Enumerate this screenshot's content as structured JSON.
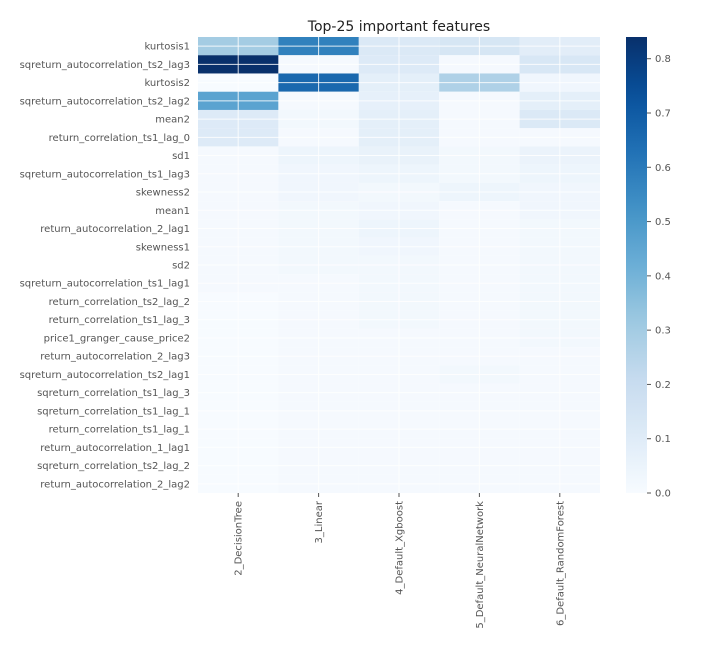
{
  "chart_data": {
    "type": "heatmap",
    "title": "Top-25 important features",
    "x_categories": [
      "2_DecisionTree",
      "3_Linear",
      "4_Default_Xgboost",
      "5_Default_NeuralNetwork",
      "6_Default_RandomForest"
    ],
    "y_categories": [
      "kurtosis1",
      "sqreturn_autocorrelation_ts2_lag3",
      "kurtosis2",
      "sqreturn_autocorrelation_ts2_lag2",
      "mean2",
      "return_correlation_ts1_lag_0",
      "sd1",
      "sqreturn_autocorrelation_ts1_lag3",
      "skewness2",
      "mean1",
      "return_autocorrelation_2_lag1",
      "skewness1",
      "sd2",
      "sqreturn_autocorrelation_ts1_lag1",
      "return_correlation_ts2_lag_2",
      "return_correlation_ts1_lag_3",
      "price1_granger_cause_price2",
      "return_autocorrelation_2_lag3",
      "sqreturn_autocorrelation_ts2_lag1",
      "sqreturn_correlation_ts1_lag_3",
      "sqreturn_correlation_ts1_lag_1",
      "return_correlation_ts1_lag_1",
      "return_autocorrelation_1_lag1",
      "sqreturn_correlation_ts2_lag_2",
      "return_autocorrelation_2_lag2"
    ],
    "values": [
      [
        0.3,
        0.58,
        0.12,
        0.14,
        0.09
      ],
      [
        0.85,
        0.01,
        0.11,
        0.01,
        0.13
      ],
      [
        0.0,
        0.66,
        0.08,
        0.27,
        0.03
      ],
      [
        0.46,
        0.01,
        0.07,
        0.01,
        0.08
      ],
      [
        0.11,
        0.02,
        0.08,
        0.01,
        0.12
      ],
      [
        0.11,
        0.01,
        0.08,
        0.01,
        0.01
      ],
      [
        0.01,
        0.04,
        0.06,
        0.02,
        0.05
      ],
      [
        0.01,
        0.03,
        0.04,
        0.02,
        0.04
      ],
      [
        0.01,
        0.03,
        0.02,
        0.04,
        0.03
      ],
      [
        0.01,
        0.02,
        0.03,
        0.01,
        0.03
      ],
      [
        0.01,
        0.02,
        0.04,
        0.01,
        0.02
      ],
      [
        0.01,
        0.02,
        0.03,
        0.01,
        0.02
      ],
      [
        0.01,
        0.02,
        0.02,
        0.01,
        0.02
      ],
      [
        0.01,
        0.01,
        0.02,
        0.01,
        0.02
      ],
      [
        0.0,
        0.01,
        0.02,
        0.01,
        0.02
      ],
      [
        0.0,
        0.01,
        0.02,
        0.01,
        0.02
      ],
      [
        0.0,
        0.01,
        0.01,
        0.01,
        0.02
      ],
      [
        0.0,
        0.01,
        0.01,
        0.01,
        0.01
      ],
      [
        0.0,
        0.01,
        0.01,
        0.02,
        0.01
      ],
      [
        0.0,
        0.01,
        0.01,
        0.01,
        0.01
      ],
      [
        0.0,
        0.01,
        0.01,
        0.01,
        0.01
      ],
      [
        0.0,
        0.01,
        0.01,
        0.01,
        0.01
      ],
      [
        0.0,
        0.01,
        0.01,
        0.01,
        0.01
      ],
      [
        0.0,
        0.01,
        0.01,
        0.01,
        0.01
      ],
      [
        0.0,
        0.01,
        0.01,
        0.01,
        0.01
      ]
    ],
    "zlim": [
      0.0,
      0.84
    ],
    "colorscale": "Blues",
    "colorbar_ticks": [
      "0.0",
      "0.1",
      "0.2",
      "0.3",
      "0.4",
      "0.5",
      "0.6",
      "0.7",
      "0.8"
    ],
    "colorbar_tick_values": [
      0.0,
      0.1,
      0.2,
      0.3,
      0.4,
      0.5,
      0.6,
      0.7,
      0.8
    ],
    "grid": true,
    "colors": {
      "low": "#f7fbff",
      "high": "#08306b",
      "grid": "#ffffff",
      "text": "#555555",
      "title": "#222222"
    }
  }
}
